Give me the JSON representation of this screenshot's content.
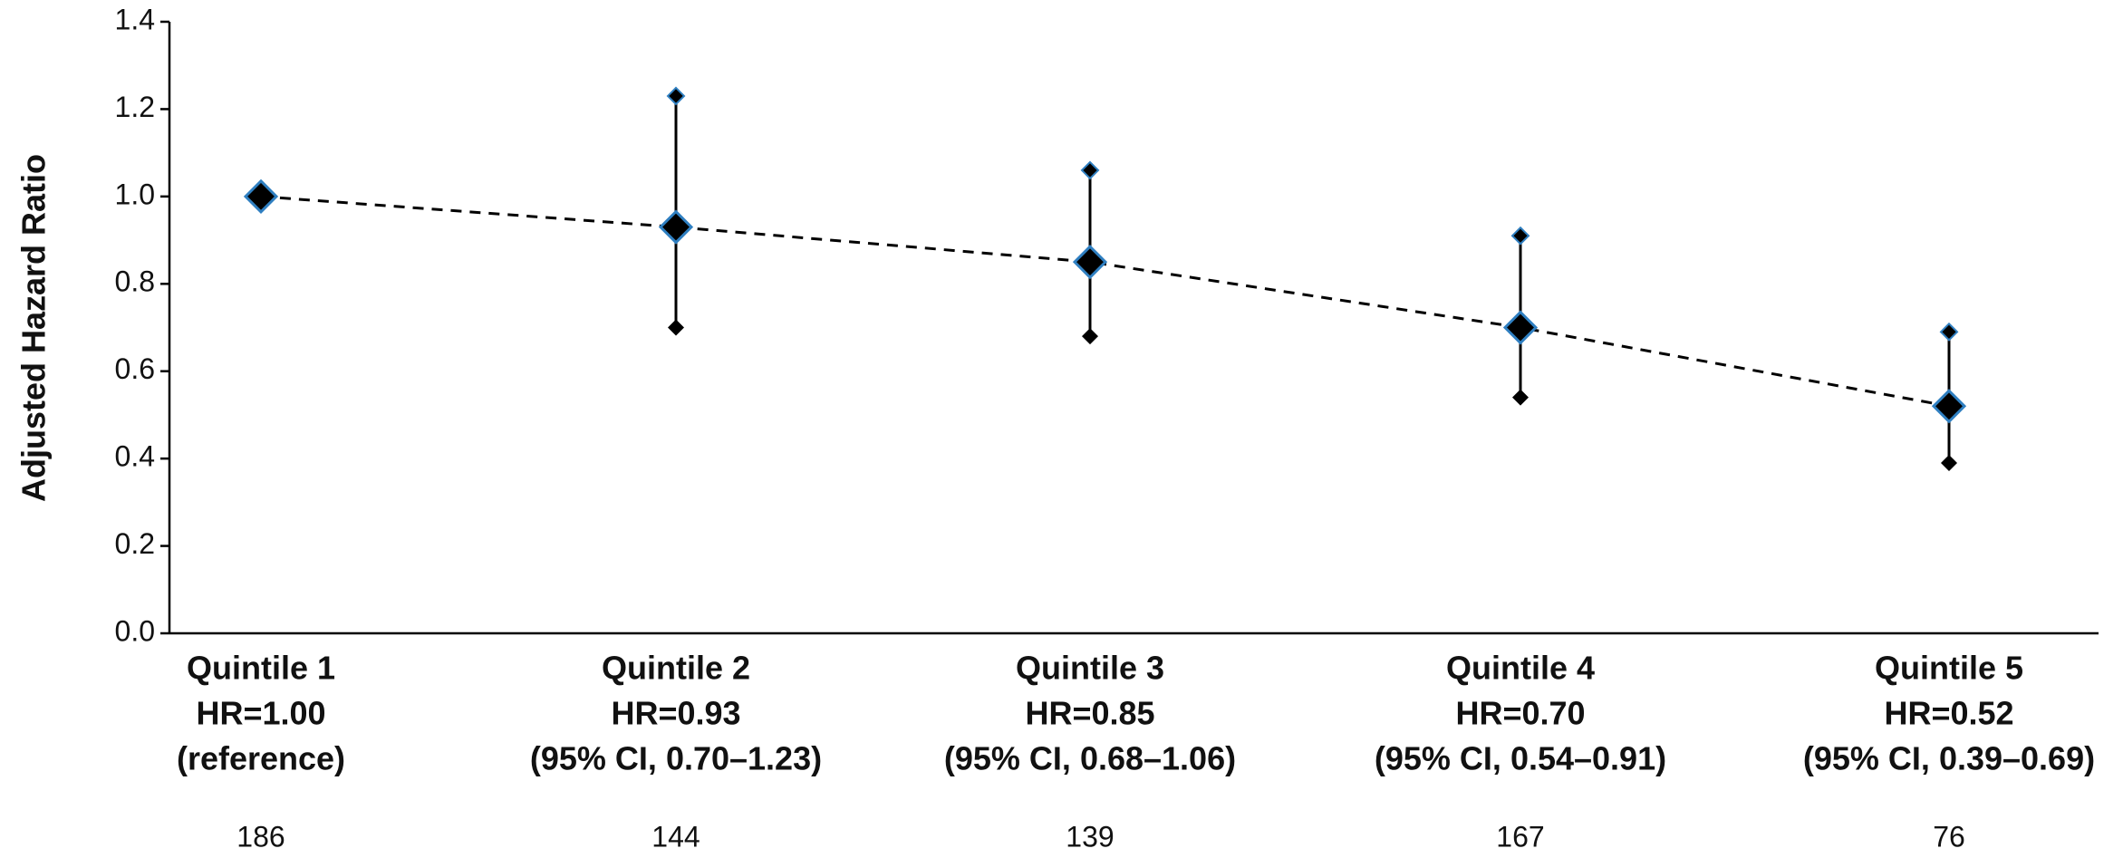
{
  "chart_data": {
    "type": "errorbar-line",
    "y_label": "Adjusted Hazard Ratio",
    "categories": [
      [
        "Quintile 1",
        "HR=1.00",
        "(reference)"
      ],
      [
        "Quintile 2",
        "HR=0.93",
        "(95% CI, 0.70–1.23)"
      ],
      [
        "Quintile 3",
        "HR=0.85",
        "(95% CI, 0.68–1.06)"
      ],
      [
        "Quintile 4",
        "HR=0.70",
        "(95% CI, 0.54–0.91)"
      ],
      [
        "Quintile 5",
        "HR=0.52",
        "(95% CI, 0.39–0.69)"
      ]
    ],
    "values": [
      1.0,
      0.93,
      0.85,
      0.7,
      0.52
    ],
    "ci_lower": [
      null,
      0.7,
      0.68,
      0.54,
      0.39
    ],
    "ci_upper": [
      null,
      1.23,
      1.06,
      0.91,
      0.69
    ],
    "counts": [
      186,
      144,
      139,
      167,
      76
    ],
    "color": "#000000",
    "edge_color": "#2f7fc1",
    "ylim": [
      0,
      1.4
    ],
    "yticks": [
      {
        "value": 0,
        "label": "0.0"
      },
      {
        "value": 0.2,
        "label": "0.2"
      },
      {
        "value": 0.4,
        "label": "0.4"
      },
      {
        "value": 0.6,
        "label": "0.6"
      },
      {
        "value": 0.8,
        "label": "0.8"
      },
      {
        "value": 1.0,
        "label": "1.0"
      },
      {
        "value": 1.2,
        "label": "1.2"
      },
      {
        "value": 1.4,
        "label": "1.4"
      }
    ],
    "line_style": "dashed"
  }
}
